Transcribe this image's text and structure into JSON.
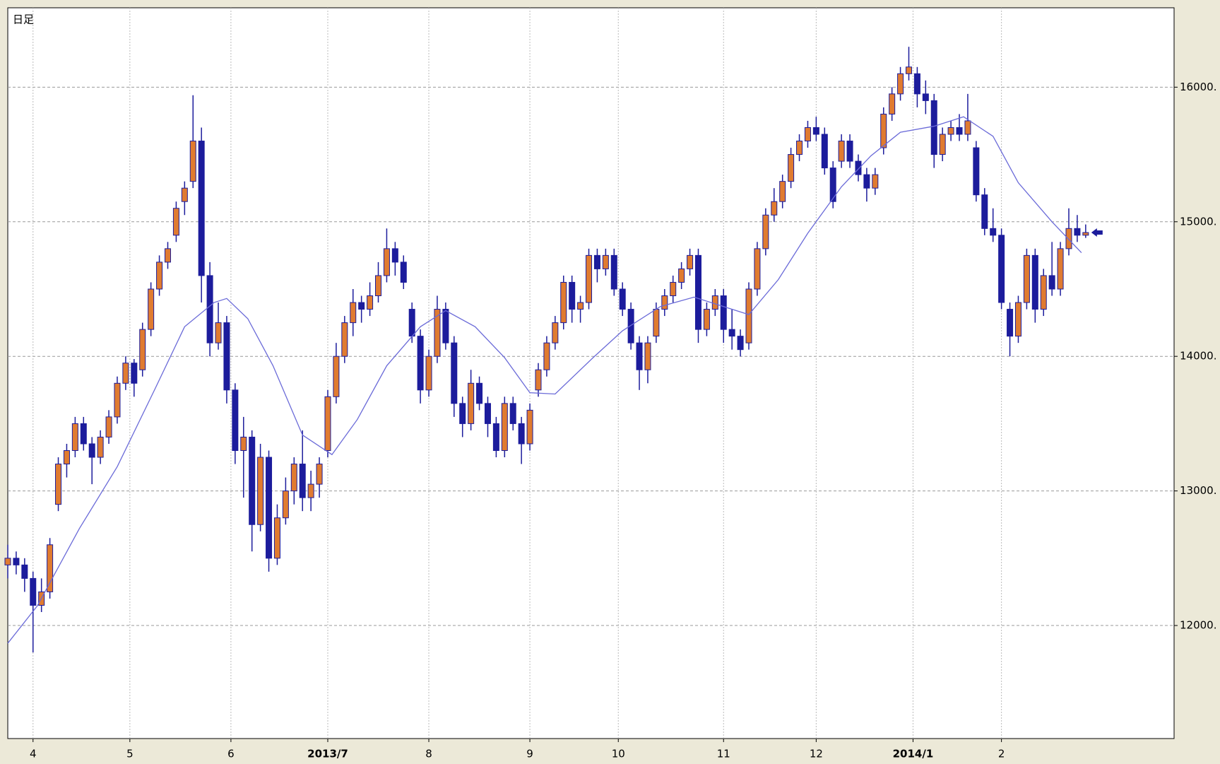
{
  "chart_data": {
    "type": "candlestick",
    "title": "日足",
    "ylim": [
      11160,
      16590
    ],
    "yticks": [
      {
        "value": 12000,
        "label": "12000."
      },
      {
        "value": 13000,
        "label": "13000."
      },
      {
        "value": 14000,
        "label": "14000."
      },
      {
        "value": 15000,
        "label": "15000."
      },
      {
        "value": 16000,
        "label": "16000."
      }
    ],
    "xlim": [
      0,
      277
    ],
    "xticks": [
      {
        "value": 6,
        "label": "4"
      },
      {
        "value": 29,
        "label": "5"
      },
      {
        "value": 53,
        "label": "6"
      },
      {
        "value": 76,
        "label": "2013/7"
      },
      {
        "value": 100,
        "label": "8"
      },
      {
        "value": 124,
        "label": "9"
      },
      {
        "value": 145,
        "label": "10"
      },
      {
        "value": 170,
        "label": "11"
      },
      {
        "value": 192,
        "label": "12"
      },
      {
        "value": 215,
        "label": "2014/1"
      },
      {
        "value": 236,
        "label": "2"
      }
    ],
    "grid": true,
    "up_color": "#e07b30",
    "down_color": "#1c1c9c",
    "x": [
      0,
      2,
      4,
      6,
      8,
      10,
      12,
      14,
      16,
      18,
      20,
      22,
      24,
      26,
      28,
      30,
      32,
      34,
      36,
      38,
      40,
      42,
      44,
      46,
      48,
      50,
      52,
      54,
      56,
      58,
      60,
      62,
      64,
      66,
      68,
      70,
      72,
      74,
      76,
      78,
      80,
      82,
      84,
      86,
      88,
      90,
      92,
      94,
      96,
      98,
      100,
      102,
      104,
      106,
      108,
      110,
      112,
      114,
      116,
      118,
      120,
      122,
      124,
      126,
      128,
      130,
      132,
      134,
      136,
      138,
      140,
      142,
      144,
      146,
      148,
      150,
      152,
      154,
      156,
      158,
      160,
      162,
      164,
      166,
      168,
      170,
      172,
      174,
      176,
      178,
      180,
      182,
      184,
      186,
      188,
      190,
      192,
      194,
      196,
      198,
      200,
      202,
      204,
      206,
      208,
      210,
      212,
      214,
      216,
      218,
      220,
      222,
      224,
      226,
      228,
      230,
      232,
      234,
      236,
      238,
      240,
      242,
      244,
      246,
      248,
      250,
      252,
      254,
      256
    ],
    "candles": [
      [
        12450,
        12600,
        12350,
        12500
      ],
      [
        12500,
        12550,
        12380,
        12450
      ],
      [
        12450,
        12500,
        12250,
        12350
      ],
      [
        12350,
        12400,
        11800,
        12150
      ],
      [
        12150,
        12350,
        12100,
        12250
      ],
      [
        12250,
        12650,
        12200,
        12600
      ],
      [
        12900,
        13250,
        12850,
        13200
      ],
      [
        13200,
        13350,
        13100,
        13300
      ],
      [
        13300,
        13550,
        13250,
        13500
      ],
      [
        13500,
        13550,
        13300,
        13350
      ],
      [
        13350,
        13400,
        13050,
        13250
      ],
      [
        13250,
        13450,
        13200,
        13400
      ],
      [
        13400,
        13600,
        13350,
        13550
      ],
      [
        13550,
        13850,
        13500,
        13800
      ],
      [
        13800,
        14000,
        13750,
        13950
      ],
      [
        13950,
        13980,
        13700,
        13800
      ],
      [
        13900,
        14250,
        13850,
        14200
      ],
      [
        14200,
        14550,
        14150,
        14500
      ],
      [
        14500,
        14750,
        14450,
        14700
      ],
      [
        14700,
        14850,
        14650,
        14800
      ],
      [
        14900,
        15150,
        14850,
        15100
      ],
      [
        15150,
        15300,
        15050,
        15250
      ],
      [
        15300,
        15940,
        15250,
        15600
      ],
      [
        15600,
        15700,
        14400,
        14600
      ],
      [
        14600,
        14700,
        14000,
        14100
      ],
      [
        14100,
        14400,
        14050,
        14250
      ],
      [
        14250,
        14300,
        13650,
        13750
      ],
      [
        13750,
        13800,
        13200,
        13300
      ],
      [
        13300,
        13550,
        12950,
        13400
      ],
      [
        13400,
        13450,
        12550,
        12750
      ],
      [
        12750,
        13350,
        12700,
        13250
      ],
      [
        13250,
        13300,
        12400,
        12500
      ],
      [
        12500,
        12900,
        12450,
        12800
      ],
      [
        12800,
        13100,
        12750,
        13000
      ],
      [
        13000,
        13250,
        12900,
        13200
      ],
      [
        13200,
        13450,
        12850,
        12950
      ],
      [
        12950,
        13150,
        12850,
        13050
      ],
      [
        13050,
        13250,
        12950,
        13200
      ],
      [
        13300,
        13750,
        13250,
        13700
      ],
      [
        13700,
        14100,
        13650,
        14000
      ],
      [
        14000,
        14300,
        13950,
        14250
      ],
      [
        14250,
        14500,
        14150,
        14400
      ],
      [
        14400,
        14450,
        14250,
        14350
      ],
      [
        14350,
        14550,
        14300,
        14450
      ],
      [
        14450,
        14700,
        14400,
        14600
      ],
      [
        14600,
        14950,
        14550,
        14800
      ],
      [
        14800,
        14850,
        14600,
        14700
      ],
      [
        14700,
        14750,
        14500,
        14550
      ],
      [
        14350,
        14400,
        14100,
        14150
      ],
      [
        14150,
        14200,
        13650,
        13750
      ],
      [
        13750,
        14050,
        13700,
        14000
      ],
      [
        14000,
        14450,
        13950,
        14350
      ],
      [
        14350,
        14400,
        14050,
        14100
      ],
      [
        14100,
        14150,
        13550,
        13650
      ],
      [
        13650,
        13700,
        13400,
        13500
      ],
      [
        13500,
        13900,
        13450,
        13800
      ],
      [
        13800,
        13850,
        13600,
        13650
      ],
      [
        13650,
        13700,
        13400,
        13500
      ],
      [
        13500,
        13550,
        13250,
        13300
      ],
      [
        13300,
        13700,
        13250,
        13650
      ],
      [
        13650,
        13700,
        13450,
        13500
      ],
      [
        13500,
        13550,
        13200,
        13350
      ],
      [
        13350,
        13650,
        13300,
        13600
      ],
      [
        13750,
        13950,
        13700,
        13900
      ],
      [
        13900,
        14150,
        13850,
        14100
      ],
      [
        14100,
        14300,
        14050,
        14250
      ],
      [
        14250,
        14600,
        14200,
        14550
      ],
      [
        14550,
        14600,
        14250,
        14350
      ],
      [
        14350,
        14450,
        14250,
        14400
      ],
      [
        14400,
        14800,
        14350,
        14750
      ],
      [
        14750,
        14800,
        14550,
        14650
      ],
      [
        14650,
        14800,
        14600,
        14750
      ],
      [
        14750,
        14800,
        14450,
        14500
      ],
      [
        14500,
        14550,
        14300,
        14350
      ],
      [
        14350,
        14400,
        14050,
        14100
      ],
      [
        14100,
        14150,
        13750,
        13900
      ],
      [
        13900,
        14150,
        13800,
        14100
      ],
      [
        14150,
        14400,
        14100,
        14350
      ],
      [
        14350,
        14500,
        14300,
        14450
      ],
      [
        14450,
        14600,
        14400,
        14550
      ],
      [
        14550,
        14700,
        14500,
        14650
      ],
      [
        14650,
        14800,
        14600,
        14750
      ],
      [
        14750,
        14800,
        14100,
        14200
      ],
      [
        14200,
        14400,
        14150,
        14350
      ],
      [
        14350,
        14500,
        14300,
        14450
      ],
      [
        14450,
        14500,
        14100,
        14200
      ],
      [
        14200,
        14350,
        14050,
        14150
      ],
      [
        14150,
        14200,
        14000,
        14050
      ],
      [
        14100,
        14550,
        14050,
        14500
      ],
      [
        14500,
        14850,
        14450,
        14800
      ],
      [
        14800,
        15100,
        14750,
        15050
      ],
      [
        15050,
        15250,
        15000,
        15150
      ],
      [
        15150,
        15350,
        15100,
        15300
      ],
      [
        15300,
        15550,
        15250,
        15500
      ],
      [
        15500,
        15650,
        15450,
        15600
      ],
      [
        15600,
        15750,
        15550,
        15700
      ],
      [
        15700,
        15780,
        15600,
        15650
      ],
      [
        15650,
        15700,
        15350,
        15400
      ],
      [
        15400,
        15450,
        15100,
        15150
      ],
      [
        15450,
        15650,
        15400,
        15600
      ],
      [
        15600,
        15650,
        15400,
        15450
      ],
      [
        15450,
        15500,
        15300,
        15350
      ],
      [
        15350,
        15400,
        15150,
        15250
      ],
      [
        15250,
        15400,
        15200,
        15350
      ],
      [
        15550,
        15850,
        15500,
        15800
      ],
      [
        15800,
        16000,
        15750,
        15950
      ],
      [
        15950,
        16150,
        15900,
        16100
      ],
      [
        16100,
        16300,
        16050,
        16150
      ],
      [
        16100,
        16150,
        15850,
        15950
      ],
      [
        15950,
        16050,
        15800,
        15900
      ],
      [
        15900,
        15950,
        15400,
        15500
      ],
      [
        15500,
        15700,
        15450,
        15650
      ],
      [
        15650,
        15750,
        15600,
        15700
      ],
      [
        15700,
        15800,
        15600,
        15650
      ],
      [
        15650,
        15950,
        15600,
        15750
      ],
      [
        15550,
        15600,
        15150,
        15200
      ],
      [
        15200,
        15250,
        14900,
        14950
      ],
      [
        14950,
        15100,
        14850,
        14900
      ],
      [
        14900,
        14950,
        14350,
        14400
      ],
      [
        14350,
        14400,
        14000,
        14150
      ],
      [
        14150,
        14450,
        14100,
        14400
      ],
      [
        14400,
        14800,
        14350,
        14750
      ],
      [
        14750,
        14800,
        14250,
        14350
      ],
      [
        14350,
        14650,
        14300,
        14600
      ],
      [
        14600,
        14850,
        14450,
        14500
      ],
      [
        14500,
        14850,
        14450,
        14800
      ],
      [
        14800,
        15100,
        14750,
        14950
      ],
      [
        14950,
        15050,
        14850,
        14900
      ],
      [
        14900,
        14980,
        14880,
        14920
      ]
    ],
    "moving_average": {
      "color": "#6a6ad8",
      "x": [
        0,
        7,
        17,
        26,
        35,
        42,
        49,
        52,
        57,
        63,
        70,
        77,
        83,
        90,
        98,
        104,
        111,
        118,
        124,
        130,
        139,
        146,
        155,
        163,
        170,
        176,
        183,
        190,
        198,
        205,
        212,
        220,
        227,
        234,
        240,
        248,
        255
      ],
      "values": [
        11868,
        12145,
        12720,
        13180,
        13760,
        14220,
        14400,
        14430,
        14280,
        13930,
        13415,
        13270,
        13530,
        13930,
        14220,
        14340,
        14220,
        13990,
        13730,
        13720,
        13990,
        14190,
        14370,
        14440,
        14370,
        14310,
        14570,
        14915,
        15260,
        15490,
        15665,
        15710,
        15780,
        15635,
        15290,
        15000,
        14770
      ]
    }
  }
}
